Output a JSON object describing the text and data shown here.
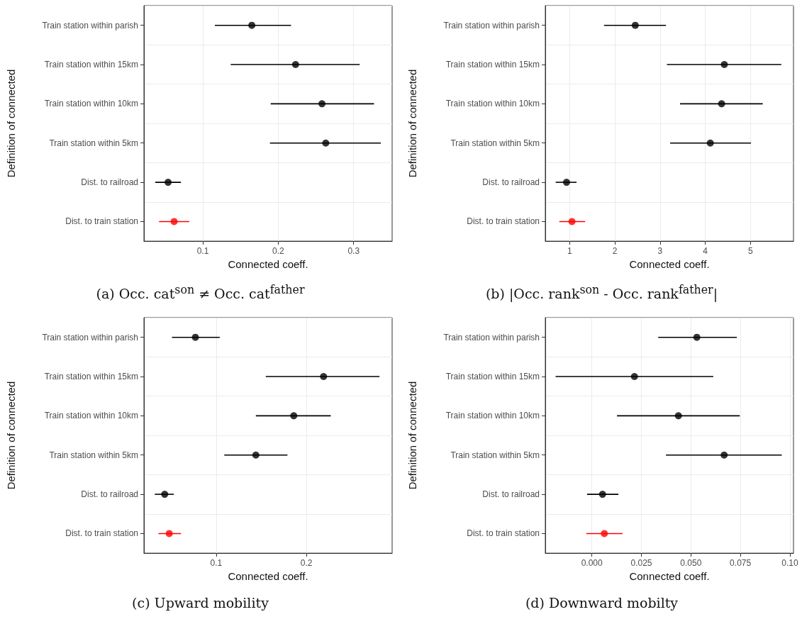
{
  "chart_data": [
    {
      "type": "scatter",
      "orientation": "horizontal",
      "title": "(a) Occ. cat$^{son}$ ≠ Occ. cat$^{father}$",
      "xlabel": "Connected coeff.",
      "ylabel": "Definition of connected",
      "categories": [
        "Train station within parish",
        "Train station within 15km",
        "Train station within 10km",
        "Train station within 5km",
        "Dist. to railroad",
        "Dist. to train station"
      ],
      "values": [
        0.165,
        0.223,
        0.258,
        0.263,
        0.054,
        0.062
      ],
      "errors": [
        [
          0.116,
          0.217
        ],
        [
          0.137,
          0.308
        ],
        [
          0.19,
          0.327
        ],
        [
          0.189,
          0.336
        ],
        [
          0.037,
          0.071
        ],
        [
          0.042,
          0.082
        ]
      ],
      "colors": [
        "#000000",
        "#000000",
        "#000000",
        "#000000",
        "#000000",
        "#ff0000"
      ],
      "xlim": [
        0.022,
        0.351
      ],
      "xticks": [
        0.1,
        0.2,
        0.3
      ],
      "grid": true,
      "marker": "circle"
    },
    {
      "type": "scatter",
      "orientation": "horizontal",
      "title": "(b) |Occ. rank$^{son}$ - Occ. rank$^{father}$|",
      "xlabel": "Connected coeff.",
      "ylabel": "Definition of connected",
      "categories": [
        "Train station within parish",
        "Train station within 15km",
        "Train station within 10km",
        "Train station within 5km",
        "Dist. to railroad",
        "Dist. to train station"
      ],
      "values": [
        2.45,
        4.42,
        4.36,
        4.11,
        0.93,
        1.05
      ],
      "errors": [
        [
          1.76,
          3.13
        ],
        [
          3.15,
          5.68
        ],
        [
          3.44,
          5.27
        ],
        [
          3.22,
          5.01
        ],
        [
          0.69,
          1.15
        ],
        [
          0.77,
          1.34
        ]
      ],
      "colors": [
        "#000000",
        "#000000",
        "#000000",
        "#000000",
        "#000000",
        "#ff0000"
      ],
      "xlim": [
        0.46,
        5.95
      ],
      "xticks": [
        1,
        2,
        3,
        4,
        5
      ],
      "grid": true,
      "marker": "circle"
    },
    {
      "type": "scatter",
      "orientation": "horizontal",
      "title": "(c) Upward mobility",
      "xlabel": "Connected coeff.",
      "ylabel": "Definition of connected",
      "categories": [
        "Train station within parish",
        "Train station within 15km",
        "Train station within 10km",
        "Train station within 5km",
        "Dist. to railroad",
        "Dist. to train station"
      ],
      "values": [
        0.077,
        0.219,
        0.186,
        0.144,
        0.043,
        0.048
      ],
      "errors": [
        [
          0.051,
          0.104
        ],
        [
          0.155,
          0.281
        ],
        [
          0.144,
          0.227
        ],
        [
          0.109,
          0.179
        ],
        [
          0.032,
          0.053
        ],
        [
          0.036,
          0.061
        ]
      ],
      "colors": [
        "#000000",
        "#000000",
        "#000000",
        "#000000",
        "#000000",
        "#ff0000"
      ],
      "xlim": [
        0.02,
        0.295
      ],
      "xticks": [
        0.1,
        0.2
      ],
      "grid": true,
      "marker": "circle"
    },
    {
      "type": "scatter",
      "orientation": "horizontal",
      "title": "(d) Downward mobilty",
      "xlabel": "Connected coeff.",
      "ylabel": "Definition of connected",
      "categories": [
        "Train station within parish",
        "Train station within 15km",
        "Train station within 10km",
        "Train station within 5km",
        "Dist. to railroad",
        "Dist. to train station"
      ],
      "values": [
        0.053,
        0.0215,
        0.0437,
        0.0668,
        0.0054,
        0.0063
      ],
      "errors": [
        [
          0.0335,
          0.0732
        ],
        [
          -0.0183,
          0.0613
        ],
        [
          0.0127,
          0.0747
        ],
        [
          0.0374,
          0.0959
        ],
        [
          -0.0024,
          0.0134
        ],
        [
          -0.0028,
          0.0155
        ]
      ],
      "colors": [
        "#000000",
        "#000000",
        "#000000",
        "#000000",
        "#000000",
        "#ff0000"
      ],
      "xlim": [
        -0.0235,
        0.1018
      ],
      "xticks": [
        {
          "value": 0,
          "label": "0.000"
        },
        {
          "value": 0.025,
          "label": "0.025"
        },
        {
          "value": 0.05,
          "label": "0.050"
        },
        {
          "value": 0.075,
          "label": "0.075"
        },
        {
          "value": 0.1,
          "label": "0.10"
        }
      ],
      "grid": true,
      "marker": "circle"
    }
  ]
}
